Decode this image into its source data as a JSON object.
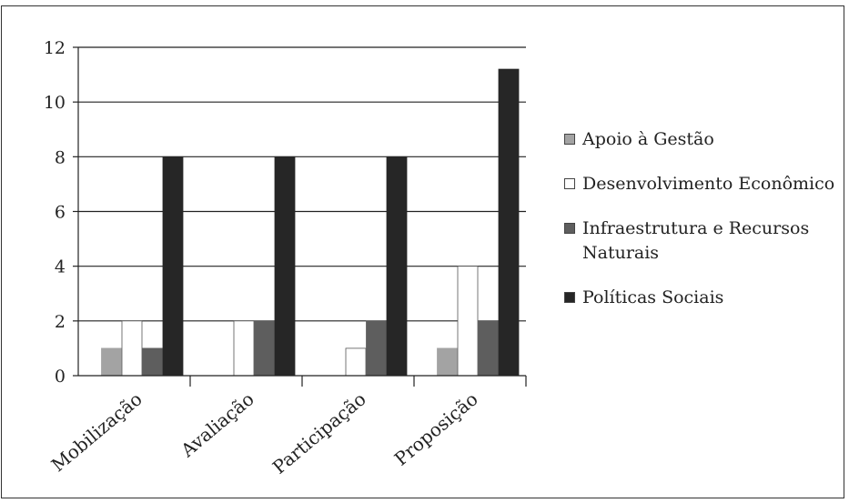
{
  "chart_data": {
    "type": "bar",
    "categories": [
      "Mobilização",
      "Avaliação",
      "Participação",
      "Proposição"
    ],
    "series": [
      {
        "name": "Apoio à Gestão",
        "values": [
          1,
          0,
          0,
          1
        ],
        "color": "#a3a3a3"
      },
      {
        "name": "Desenvolvimento Econômico",
        "values": [
          2,
          2,
          1,
          4
        ],
        "color": "#ffffff"
      },
      {
        "name": "Infraestrutura e Recursos Naturais",
        "values": [
          1,
          2,
          2,
          2
        ],
        "color": "#5e5e5e"
      },
      {
        "name": "Políticas Sociais",
        "values": [
          8,
          8,
          8,
          11.2
        ],
        "color": "#262626"
      }
    ],
    "ylim": [
      0,
      12
    ],
    "yticks": [
      0,
      2,
      4,
      6,
      8,
      10,
      12
    ],
    "grid": true,
    "legend_position": "right"
  }
}
